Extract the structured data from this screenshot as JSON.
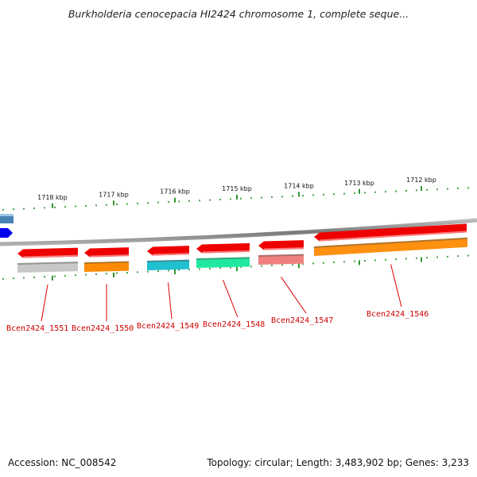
{
  "title": "Burkholderia cenocepacia HI2424 chromosome 1, complete seque...",
  "footer": {
    "accession": "Accession: NC_008542",
    "summary": "Topology: circular; Length: 3,483,902 bp; Genes: 3,233"
  },
  "ruler": [
    "1718 kbp",
    "1717 kbp",
    "1716 kbp",
    "1715 kbp",
    "1714 kbp",
    "1713 kbp",
    "1712 kbp"
  ],
  "genes": [
    {
      "name": "Bcen2424_1551",
      "color": "#c8c8c8"
    },
    {
      "name": "Bcen2424_1550",
      "color": "#ff8c00"
    },
    {
      "name": "Bcen2424_1549",
      "color": "#20c0d0"
    },
    {
      "name": "Bcen2424_1548",
      "color": "#20e8a0"
    },
    {
      "name": "Bcen2424_1547",
      "color": "#f08080"
    },
    {
      "name": "Bcen2424_1546",
      "color": "#ff9010"
    }
  ],
  "colors": {
    "cds": "#ee0000",
    "backbone": "#888888",
    "tick": "#1a8a1a",
    "label_line": "#dd0000",
    "left_partial_1": "#4682b4",
    "left_partial_2": "#0000ee"
  }
}
